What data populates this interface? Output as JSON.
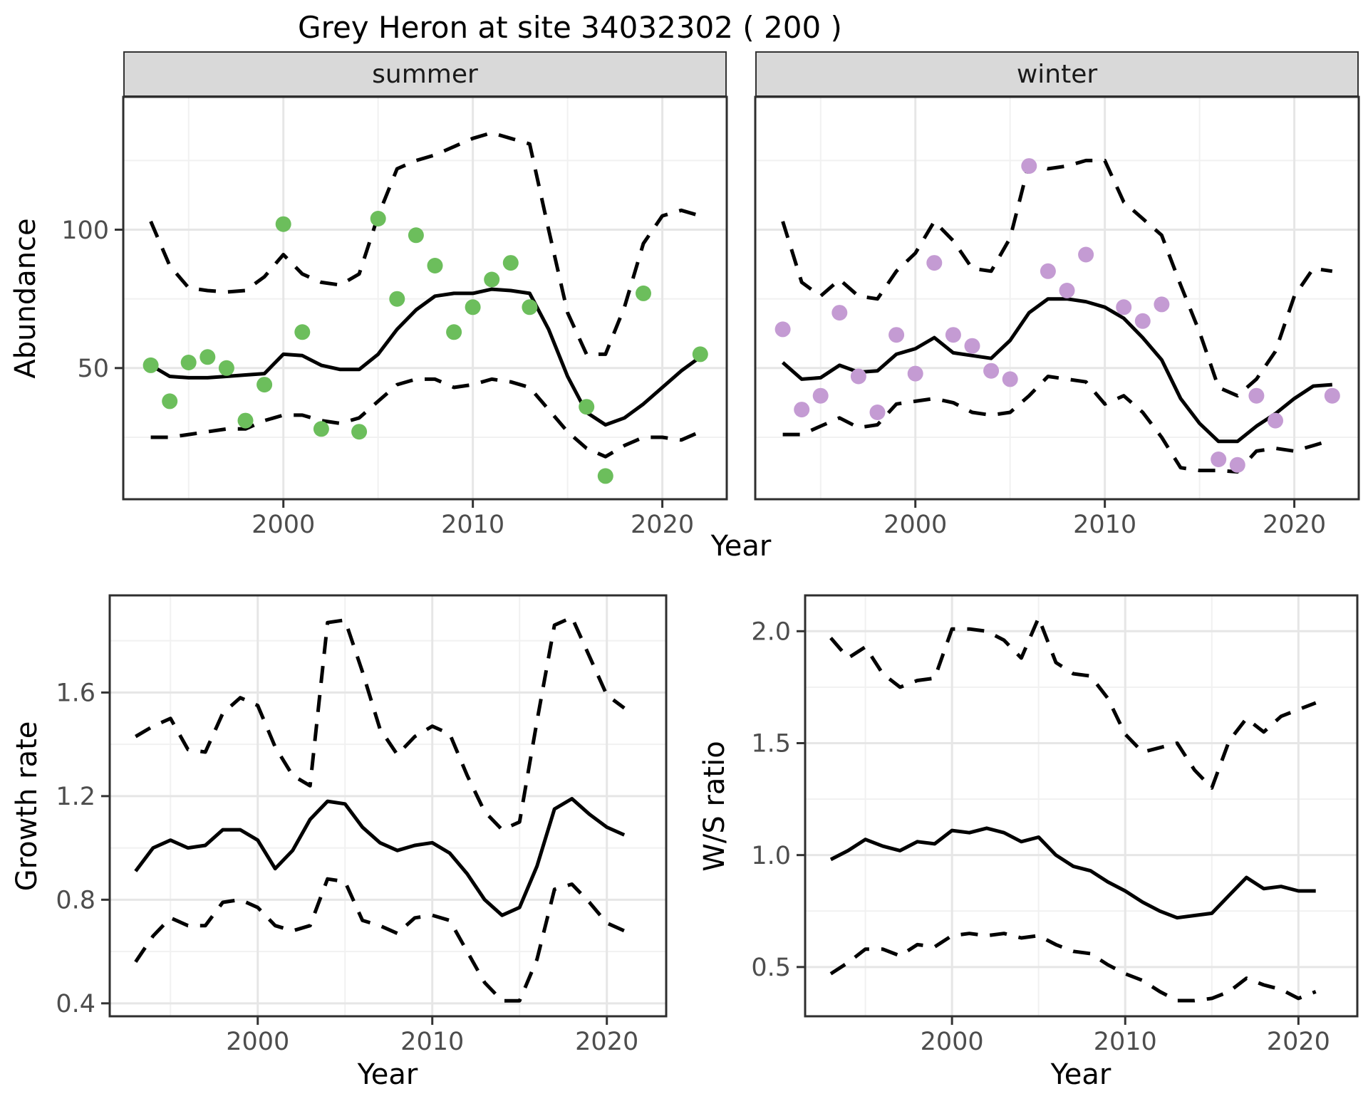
{
  "title": "Grey Heron at site 34032302 ( 200 )",
  "facets": {
    "summer": "summer",
    "winter": "winter"
  },
  "labels": {
    "year": "Year",
    "abundance": "Abundance",
    "growth_rate": "Growth rate",
    "ws_ratio": "W/S ratio"
  },
  "colors": {
    "summer_points": "#6CBE5C",
    "winter_points": "#C49BD3",
    "line": "#000000",
    "grid_major": "#e6e6e6",
    "grid_minor": "#f1f1f1",
    "panel_border": "#2e2e2e",
    "tick_text": "#4d4d4d",
    "strip_bg": "#d9d9d9"
  },
  "chart_data": [
    {
      "id": "summer",
      "type": "scatter",
      "facet": "summer",
      "xlabel": "Year",
      "ylabel": "Abundance",
      "xlim": [
        1991.55,
        2023.4
      ],
      "ylim": [
        2.6,
        148
      ],
      "xticks": {
        "major": [
          2000,
          2010,
          2020
        ],
        "labels": [
          "2000",
          "2010",
          "2020"
        ],
        "minor": [
          1995,
          2005,
          2015
        ]
      },
      "yticks": {
        "major": [
          50,
          100
        ],
        "labels": [
          "50",
          "100"
        ],
        "minor": [
          25,
          75,
          125
        ],
        "show_labels": true
      },
      "points": {
        "x": [
          1993,
          1994,
          1995,
          1996,
          1997,
          1998,
          1999,
          2000,
          2001,
          2002,
          2004,
          2005,
          2006,
          2007,
          2008,
          2009,
          2010,
          2011,
          2012,
          2013,
          2016,
          2017,
          2019,
          2022
        ],
        "y": [
          51,
          38,
          52,
          54,
          50,
          31,
          44,
          102,
          63,
          28,
          27,
          104,
          75,
          98,
          87,
          63,
          72,
          82,
          88,
          72,
          36,
          11,
          77,
          55
        ],
        "color_key": "summer_points"
      },
      "series": [
        {
          "name": "trend",
          "linetype": "solid",
          "x": [
            1993,
            1994,
            1995,
            1996,
            1997,
            1998,
            1999,
            2000,
            2001,
            2002,
            2003,
            2004,
            2005,
            2006,
            2007,
            2008,
            2009,
            2010,
            2011,
            2012,
            2013,
            2014,
            2015,
            2016,
            2017,
            2018,
            2019,
            2020,
            2021,
            2022
          ],
          "y": [
            51,
            47,
            46.5,
            46.5,
            47,
            47.5,
            48,
            55,
            54.5,
            51,
            49.5,
            49.5,
            55,
            64,
            71,
            76,
            77,
            77,
            78.5,
            78,
            77,
            64,
            47,
            34,
            29.5,
            32,
            37,
            43,
            49,
            54
          ]
        },
        {
          "name": "upper_ci",
          "linetype": "dashed",
          "x": [
            1993,
            1994,
            1995,
            1996,
            1997,
            1998,
            1999,
            2000,
            2001,
            2002,
            2003,
            2004,
            2005,
            2006,
            2007,
            2008,
            2009,
            2010,
            2011,
            2012,
            2013,
            2014,
            2015,
            2016,
            2017,
            2018,
            2019,
            2020,
            2021,
            2022
          ],
          "y": [
            103,
            87,
            79,
            78,
            77.5,
            78,
            83,
            91,
            84,
            81,
            80,
            84,
            105,
            122,
            125,
            127,
            130,
            133,
            135,
            133,
            131,
            100,
            70,
            55,
            55,
            72,
            95,
            105,
            107,
            105
          ]
        },
        {
          "name": "lower_ci",
          "linetype": "dashed",
          "x": [
            1993,
            1994,
            1995,
            1996,
            1997,
            1998,
            1999,
            2000,
            2001,
            2002,
            2003,
            2004,
            2005,
            2006,
            2007,
            2008,
            2009,
            2010,
            2011,
            2012,
            2013,
            2014,
            2015,
            2016,
            2017,
            2018,
            2019,
            2020,
            2021,
            2022
          ],
          "y": [
            25,
            25,
            26,
            27,
            28,
            28,
            31,
            33,
            33,
            31,
            30,
            32,
            38,
            44,
            46,
            46,
            43,
            44,
            46,
            45,
            43,
            35,
            27,
            21,
            18,
            22,
            25,
            25,
            24,
            27
          ]
        }
      ]
    },
    {
      "id": "winter",
      "type": "scatter",
      "facet": "winter",
      "xlabel": "Year",
      "ylabel": "Abundance",
      "xlim": [
        1991.55,
        2023.4
      ],
      "ylim": [
        2.6,
        148
      ],
      "xticks": {
        "major": [
          2000,
          2010,
          2020
        ],
        "labels": [
          "2000",
          "2010",
          "2020"
        ],
        "minor": [
          1995,
          2005,
          2015
        ]
      },
      "yticks": {
        "major": [
          50,
          100
        ],
        "labels": [
          "50",
          "100"
        ],
        "minor": [
          25,
          75,
          125
        ],
        "show_labels": false
      },
      "points": {
        "x": [
          1993,
          1994,
          1995,
          1996,
          1997,
          1998,
          1999,
          2000,
          2001,
          2002,
          2003,
          2004,
          2005,
          2006,
          2007,
          2008,
          2009,
          2011,
          2012,
          2013,
          2016,
          2017,
          2018,
          2019,
          2022
        ],
        "y": [
          64,
          35,
          40,
          70,
          47,
          34,
          62,
          48,
          88,
          62,
          58,
          49,
          46,
          123,
          85,
          78,
          91,
          72,
          67,
          73,
          17,
          15,
          40,
          31,
          40
        ],
        "color_key": "winter_points"
      },
      "series": [
        {
          "name": "trend",
          "linetype": "solid",
          "x": [
            1993,
            1994,
            1995,
            1996,
            1997,
            1998,
            1999,
            2000,
            2001,
            2002,
            2003,
            2004,
            2005,
            2006,
            2007,
            2008,
            2009,
            2010,
            2011,
            2012,
            2013,
            2014,
            2015,
            2016,
            2017,
            2018,
            2019,
            2020,
            2021,
            2022
          ],
          "y": [
            52,
            46,
            46.5,
            51,
            48.5,
            49,
            55,
            57,
            61,
            55.5,
            54.5,
            53.5,
            60,
            70,
            75,
            75,
            74,
            72,
            68,
            61,
            53,
            39,
            30,
            23.5,
            23.5,
            29,
            33.5,
            39,
            43.5,
            44
          ]
        },
        {
          "name": "upper_ci",
          "linetype": "dashed",
          "x": [
            1993,
            1994,
            1995,
            1996,
            1997,
            1998,
            1999,
            2000,
            2001,
            2002,
            2003,
            2004,
            2005,
            2006,
            2007,
            2008,
            2009,
            2010,
            2011,
            2012,
            2013,
            2014,
            2015,
            2016,
            2017,
            2018,
            2019,
            2020,
            2021,
            2022
          ],
          "y": [
            103,
            81,
            76,
            82,
            76,
            75,
            85,
            91.5,
            103,
            96,
            86,
            85,
            97,
            124,
            122,
            123,
            125,
            125,
            110,
            104,
            98,
            80,
            63,
            43,
            40,
            46,
            56,
            76,
            86,
            85
          ]
        },
        {
          "name": "lower_ci",
          "linetype": "dashed",
          "x": [
            1993,
            1994,
            1995,
            1996,
            1997,
            1998,
            1999,
            2000,
            2001,
            2002,
            2003,
            2004,
            2005,
            2006,
            2007,
            2008,
            2009,
            2010,
            2011,
            2012,
            2013,
            2014,
            2015,
            2016,
            2017,
            2018,
            2019,
            2020,
            2021,
            2022
          ],
          "y": [
            26,
            26,
            29,
            32,
            28.5,
            29.5,
            37,
            38,
            39,
            37.5,
            34,
            33,
            34,
            40,
            47,
            46,
            45,
            37,
            40,
            34,
            25,
            14,
            13,
            13,
            12.5,
            20,
            21,
            20,
            22,
            24
          ]
        }
      ]
    },
    {
      "id": "growth",
      "type": "line",
      "xlabel": "Year",
      "ylabel": "Growth rate",
      "xlim": [
        1991.52,
        2023.4
      ],
      "ylim": [
        0.35,
        1.975
      ],
      "xticks": {
        "major": [
          2000,
          2010,
          2020
        ],
        "labels": [
          "2000",
          "2010",
          "2020"
        ],
        "minor": [
          1995,
          2005,
          2015
        ]
      },
      "yticks": {
        "major": [
          0.4,
          0.8,
          1.2,
          1.6
        ],
        "labels": [
          "0.4",
          "0.8",
          "1.2",
          "1.6"
        ],
        "minor": [
          0.6,
          1.0,
          1.4,
          1.8
        ],
        "show_labels": true
      },
      "series": [
        {
          "name": "trend",
          "linetype": "solid",
          "x": [
            1993,
            1994,
            1995,
            1996,
            1997,
            1998,
            1999,
            2000,
            2001,
            2002,
            2003,
            2004,
            2005,
            2006,
            2007,
            2008,
            2009,
            2010,
            2011,
            2012,
            2013,
            2014,
            2015,
            2016,
            2017,
            2018,
            2019,
            2020,
            2021
          ],
          "y": [
            0.91,
            1.0,
            1.03,
            1.0,
            1.01,
            1.07,
            1.07,
            1.03,
            0.92,
            0.99,
            1.11,
            1.18,
            1.17,
            1.08,
            1.02,
            0.99,
            1.01,
            1.02,
            0.98,
            0.9,
            0.8,
            0.74,
            0.77,
            0.93,
            1.15,
            1.19,
            1.13,
            1.08,
            1.05
          ]
        },
        {
          "name": "upper_ci",
          "linetype": "dashed",
          "x": [
            1993,
            1994,
            1995,
            1996,
            1997,
            1998,
            1999,
            2000,
            2001,
            2002,
            2003,
            2004,
            2005,
            2006,
            2007,
            2008,
            2009,
            2010,
            2011,
            2012,
            2013,
            2014,
            2015,
            2016,
            2017,
            2018,
            2019,
            2020,
            2021
          ],
          "y": [
            1.43,
            1.47,
            1.5,
            1.38,
            1.37,
            1.52,
            1.58,
            1.55,
            1.39,
            1.28,
            1.24,
            1.87,
            1.88,
            1.68,
            1.46,
            1.36,
            1.43,
            1.47,
            1.44,
            1.28,
            1.14,
            1.07,
            1.1,
            1.49,
            1.86,
            1.89,
            1.74,
            1.59,
            1.54
          ]
        },
        {
          "name": "lower_ci",
          "linetype": "dashed",
          "x": [
            1993,
            1994,
            1995,
            1996,
            1997,
            1998,
            1999,
            2000,
            2001,
            2002,
            2003,
            2004,
            2005,
            2006,
            2007,
            2008,
            2009,
            2010,
            2011,
            2012,
            2013,
            2014,
            2015,
            2016,
            2017,
            2018,
            2019,
            2020,
            2021
          ],
          "y": [
            0.56,
            0.66,
            0.73,
            0.7,
            0.7,
            0.79,
            0.8,
            0.77,
            0.7,
            0.68,
            0.7,
            0.88,
            0.87,
            0.72,
            0.7,
            0.67,
            0.73,
            0.74,
            0.72,
            0.6,
            0.48,
            0.41,
            0.41,
            0.57,
            0.84,
            0.86,
            0.79,
            0.71,
            0.68
          ]
        }
      ]
    },
    {
      "id": "ws",
      "type": "line",
      "xlabel": "Year",
      "ylabel": "W/S ratio",
      "xlim": [
        1991.52,
        2023.4
      ],
      "ylim": [
        0.28,
        2.16
      ],
      "xticks": {
        "major": [
          2000,
          2010,
          2020
        ],
        "labels": [
          "2000",
          "2010",
          "2020"
        ],
        "minor": [
          1995,
          2005,
          2015
        ]
      },
      "yticks": {
        "major": [
          0.5,
          1.0,
          1.5,
          2.0
        ],
        "labels": [
          "0.5",
          "1.0",
          "1.5",
          "2.0"
        ],
        "minor": [
          0.75,
          1.25,
          1.75
        ],
        "show_labels": true
      },
      "series": [
        {
          "name": "trend",
          "linetype": "solid",
          "x": [
            1993,
            1994,
            1995,
            1996,
            1997,
            1998,
            1999,
            2000,
            2001,
            2002,
            2003,
            2004,
            2005,
            2006,
            2007,
            2008,
            2009,
            2010,
            2011,
            2012,
            2013,
            2014,
            2015,
            2016,
            2017,
            2018,
            2019,
            2020,
            2021
          ],
          "y": [
            0.98,
            1.02,
            1.07,
            1.04,
            1.02,
            1.06,
            1.05,
            1.11,
            1.1,
            1.12,
            1.1,
            1.06,
            1.08,
            1.0,
            0.95,
            0.93,
            0.88,
            0.84,
            0.79,
            0.75,
            0.72,
            0.73,
            0.74,
            0.82,
            0.9,
            0.85,
            0.86,
            0.84,
            0.84
          ]
        },
        {
          "name": "upper_ci",
          "linetype": "dashed",
          "x": [
            1993,
            1994,
            1995,
            1996,
            1997,
            1998,
            1999,
            2000,
            2001,
            2002,
            2003,
            2004,
            2005,
            2006,
            2007,
            2008,
            2009,
            2010,
            2011,
            2012,
            2013,
            2014,
            2015,
            2016,
            2017,
            2018,
            2019,
            2020,
            2021
          ],
          "y": [
            1.97,
            1.88,
            1.93,
            1.81,
            1.75,
            1.78,
            1.79,
            2.01,
            2.01,
            2.0,
            1.96,
            1.88,
            2.06,
            1.86,
            1.81,
            1.8,
            1.7,
            1.54,
            1.46,
            1.48,
            1.5,
            1.38,
            1.3,
            1.51,
            1.61,
            1.55,
            1.62,
            1.65,
            1.68
          ]
        },
        {
          "name": "lower_ci",
          "linetype": "dashed",
          "x": [
            1993,
            1994,
            1995,
            1996,
            1997,
            1998,
            1999,
            2000,
            2001,
            2002,
            2003,
            2004,
            2005,
            2006,
            2007,
            2008,
            2009,
            2010,
            2011,
            2012,
            2013,
            2014,
            2015,
            2016,
            2017,
            2018,
            2019,
            2020,
            2021
          ],
          "y": [
            0.47,
            0.52,
            0.58,
            0.58,
            0.55,
            0.6,
            0.59,
            0.64,
            0.65,
            0.64,
            0.65,
            0.63,
            0.64,
            0.6,
            0.57,
            0.56,
            0.51,
            0.47,
            0.44,
            0.39,
            0.35,
            0.35,
            0.36,
            0.39,
            0.45,
            0.42,
            0.4,
            0.36,
            0.39
          ]
        }
      ]
    }
  ]
}
